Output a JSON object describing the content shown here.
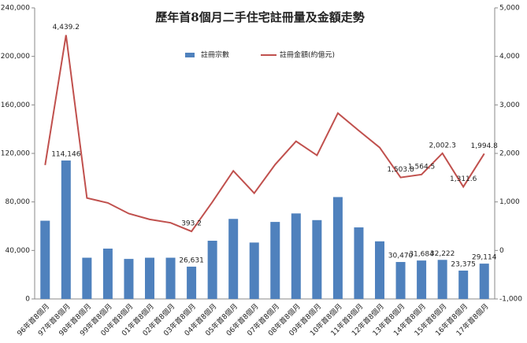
{
  "chart_data": {
    "type": "bar-line",
    "title": "歷年首8個月二手住宅註冊量及金額走勢",
    "categories": [
      "96年首8個月",
      "97年首8個月",
      "98年首8個月",
      "99年首8個月",
      "00年首8個月",
      "01年首8個月",
      "02年首8個月",
      "03年首8個月",
      "04年首8個月",
      "05年首8個月",
      "06年首8個月",
      "07年首8個月",
      "08年首8個月",
      "09年首8個月",
      "10年首8個月",
      "11年首8個月",
      "12年首8個月",
      "13年首8個月",
      "14年首8個月",
      "15年首8個月",
      "16年首8個月",
      "17年首8個月"
    ],
    "series": [
      {
        "name": "註冊宗數",
        "type": "bar",
        "color": "#4f81bd",
        "values": [
          64500,
          114146,
          34000,
          41500,
          33000,
          34000,
          34000,
          26631,
          48000,
          66000,
          46500,
          63500,
          70500,
          65000,
          84000,
          59000,
          47500,
          30470,
          31684,
          32222,
          23375,
          29114
        ],
        "value_labels": [
          null,
          "114,146",
          null,
          null,
          null,
          null,
          null,
          "26,631",
          null,
          null,
          null,
          null,
          null,
          null,
          null,
          null,
          null,
          "30,470",
          "31,684",
          "32,222",
          "23,375",
          "29,114"
        ]
      },
      {
        "name": "註冊金額(約億元)",
        "type": "line",
        "axis": "y2",
        "color": "#c0504d",
        "values": [
          1760,
          4439.2,
          1080,
          980,
          760,
          640,
          570,
          393.2,
          1000,
          1640,
          1180,
          1770,
          2250,
          1960,
          2830,
          2470,
          2120,
          1503.8,
          1564.5,
          2002.3,
          1311.6,
          1994.8
        ],
        "value_labels": [
          null,
          "4,439.2",
          null,
          null,
          null,
          null,
          null,
          "393.2",
          null,
          null,
          null,
          null,
          null,
          null,
          null,
          null,
          null,
          "1,503.8",
          "1,564.5",
          "2,002.3",
          "1,311.6",
          "1,994.8"
        ]
      }
    ],
    "ylim": [
      0,
      240000
    ],
    "yticks": [
      0,
      {
        "value": 40000,
        "label": "40,000"
      },
      {
        "value": 80000,
        "label": "80,000"
      },
      {
        "value": 120000,
        "label": "120,000"
      },
      {
        "value": 160000,
        "label": "160,000"
      },
      {
        "value": 200000,
        "label": "200,000"
      },
      {
        "value": 240000,
        "label": "240,000"
      }
    ],
    "y2lim": [
      -1000,
      5000
    ],
    "y2ticks": [
      {
        "value": -1000,
        "label": "-1,000"
      },
      0,
      {
        "value": 1000,
        "label": "1,000"
      },
      {
        "value": 2000,
        "label": "2,000"
      },
      {
        "value": 3000,
        "label": "3,000"
      },
      {
        "value": 4000,
        "label": "4,000"
      },
      {
        "value": 5000,
        "label": "5,000"
      }
    ],
    "grid": false
  }
}
